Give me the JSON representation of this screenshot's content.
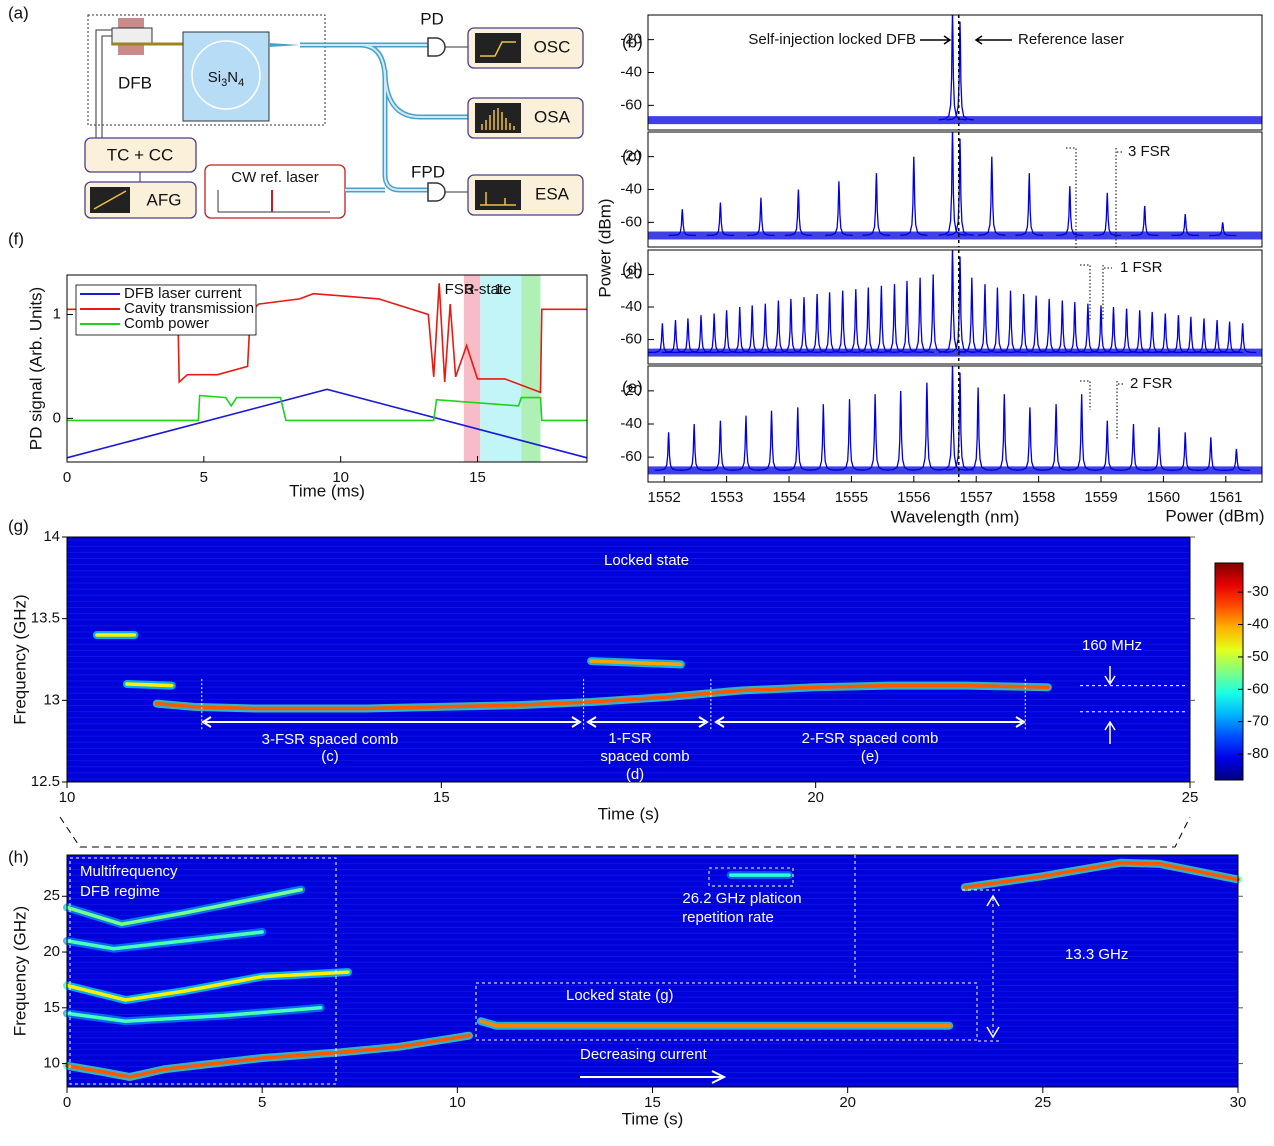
{
  "diagram": {
    "panel_label": "(a)",
    "dfb": "DFB",
    "chip": [
      "Si",
      "3",
      "N",
      "4"
    ],
    "controller": "TC + CC",
    "afg": "AFG",
    "ref_laser": "CW ref. laser",
    "pd": "PD",
    "osc": "OSC",
    "osa": "OSA",
    "fpd": "FPD",
    "esa": "ESA"
  },
  "chart_data": [
    {
      "type": "line",
      "panel_label": "(f)",
      "xlabel": "Time (ms)",
      "ylabel": "PD signal (Arb. Units)",
      "xlim": [
        0,
        19
      ],
      "ylim": [
        -0.42,
        1.38
      ],
      "xticks": [
        0,
        5,
        10,
        15
      ],
      "yticks": [
        0,
        1
      ],
      "legend": "upper-left",
      "regions": [
        {
          "x": [
            14.5,
            15.1
          ],
          "color": "#f7bcc8",
          "label": "3-"
        },
        {
          "x": [
            15.1,
            16.6
          ],
          "color": "#c2f5f8",
          "label": "1-"
        },
        {
          "x": [
            16.6,
            17.3
          ],
          "color": "#aef0b6"
        }
      ],
      "regions_caption": "FSR state",
      "series": [
        {
          "name": "DFB laser current",
          "color": "#1a1ad8",
          "x": [
            0,
            9.5,
            19
          ],
          "values": [
            -0.38,
            0.28,
            -0.38
          ]
        },
        {
          "name": "Cavity transmission",
          "color": "#e81a12",
          "x": [
            0,
            4.05,
            4.1,
            4.4,
            5.5,
            6.6,
            6.7,
            7.0,
            8.5,
            9.0,
            10.0,
            11.4,
            12.0,
            13.2,
            13.4,
            13.6,
            13.8,
            14.0,
            14.2,
            14.6,
            15.0,
            16.0,
            17.3,
            17.35,
            19
          ],
          "values": [
            1.05,
            1.05,
            0.35,
            0.42,
            0.42,
            0.5,
            1.02,
            1.1,
            1.15,
            1.2,
            1.18,
            1.15,
            1.1,
            1.0,
            0.4,
            1.3,
            0.35,
            1.1,
            0.4,
            0.7,
            0.38,
            0.38,
            0.25,
            1.05,
            1.05
          ]
        },
        {
          "name": "Comb power",
          "color": "#1ed21e",
          "x": [
            0,
            4.8,
            4.85,
            5.8,
            6.0,
            6.2,
            7.8,
            8.0,
            13.4,
            13.5,
            16.5,
            16.6,
            17.3,
            17.35,
            19
          ],
          "values": [
            -0.02,
            -0.02,
            0.22,
            0.2,
            0.12,
            0.2,
            0.2,
            -0.02,
            -0.02,
            0.18,
            0.12,
            0.2,
            0.2,
            -0.02,
            -0.02
          ]
        }
      ]
    },
    {
      "type": "spectrum",
      "panel_label": "(b)",
      "xlim": [
        1551.74,
        1561.58
      ],
      "ylim": [
        -75,
        -5
      ],
      "yticks": [
        -20,
        -40,
        -60
      ],
      "color": "#0000e0",
      "noise_floor": -69,
      "reference_line": 1556.72,
      "x": [
        1556.62,
        1556.74
      ],
      "values": [
        -3,
        -9
      ],
      "annotations": [
        "Self-injection locked DFB",
        "Reference laser"
      ]
    },
    {
      "type": "spectrum",
      "panel_label": "(c)",
      "ylabel": "Power (dBm)",
      "xlim": [
        1551.74,
        1561.58
      ],
      "ylim": [
        -75,
        -5
      ],
      "yticks": [
        -20,
        -40,
        -60
      ],
      "color": "#0000e0",
      "noise_floor": -68,
      "reference_line": 1556.72,
      "x": [
        1552.29,
        1552.9,
        1553.55,
        1554.15,
        1554.8,
        1555.4,
        1556.0,
        1556.62,
        1556.74,
        1557.25,
        1557.85,
        1558.5,
        1559.1,
        1559.7,
        1560.35,
        1560.95
      ],
      "values": [
        -52,
        -48,
        -45,
        -40,
        -35,
        -30,
        -20,
        -3,
        -9,
        -20,
        -30,
        -38,
        -42,
        -50,
        -55,
        -60
      ],
      "annotations": [
        "3 FSR"
      ]
    },
    {
      "type": "spectrum",
      "panel_label": "(d)",
      "xlim": [
        1551.74,
        1561.58
      ],
      "ylim": [
        -75,
        -5
      ],
      "yticks": [
        -20,
        -40,
        -60
      ],
      "color": "#0000e0",
      "noise_floor": -68,
      "reference_line": 1556.72,
      "x": [
        1551.97,
        1552.18,
        1552.38,
        1552.59,
        1552.8,
        1553.0,
        1553.21,
        1553.41,
        1553.62,
        1553.83,
        1554.03,
        1554.24,
        1554.45,
        1554.65,
        1554.86,
        1555.07,
        1555.27,
        1555.48,
        1555.69,
        1555.89,
        1556.1,
        1556.31,
        1556.62,
        1556.74,
        1556.93,
        1557.14,
        1557.34,
        1557.55,
        1557.76,
        1557.96,
        1558.17,
        1558.38,
        1558.58,
        1558.79,
        1559.0,
        1559.2,
        1559.41,
        1559.62,
        1559.82,
        1560.03,
        1560.24,
        1560.44,
        1560.65,
        1560.86,
        1561.06,
        1561.27
      ],
      "values": [
        -50,
        -48,
        -47,
        -45,
        -44,
        -42,
        -40,
        -39,
        -38,
        -36,
        -35,
        -34,
        -32,
        -31,
        -30,
        -29,
        -28,
        -27,
        -26,
        -24,
        -22,
        -20,
        -3,
        -9,
        -22,
        -26,
        -28,
        -30,
        -32,
        -33,
        -35,
        -36,
        -37,
        -38,
        -39,
        -40,
        -41,
        -42,
        -43,
        -44,
        -45,
        -46,
        -47,
        -48,
        -49,
        -50
      ],
      "annotations": [
        "1 FSR"
      ]
    },
    {
      "type": "spectrum",
      "panel_label": "(e)",
      "xlabel": "Wavelength (nm)",
      "xlim": [
        1551.74,
        1561.58
      ],
      "ylim": [
        -75,
        -5
      ],
      "yticks": [
        -20,
        -40,
        -60
      ],
      "xticks": [
        1552,
        1553,
        1554,
        1555,
        1556,
        1557,
        1558,
        1559,
        1560,
        1561
      ],
      "color": "#0000e0",
      "noise_floor": -68,
      "reference_line": 1556.72,
      "x": [
        1552.07,
        1552.48,
        1552.9,
        1553.31,
        1553.72,
        1554.14,
        1554.55,
        1554.97,
        1555.38,
        1555.79,
        1556.21,
        1556.62,
        1556.74,
        1557.03,
        1557.45,
        1557.86,
        1558.28,
        1558.69,
        1559.1,
        1559.52,
        1559.93,
        1560.35,
        1560.76,
        1561.17
      ],
      "values": [
        -45,
        -40,
        -38,
        -35,
        -32,
        -30,
        -28,
        -25,
        -22,
        -20,
        -15,
        -3,
        -9,
        -18,
        -22,
        -30,
        -28,
        -22,
        -38,
        -40,
        -42,
        -45,
        -48,
        -55
      ],
      "annotations": [
        "2 FSR"
      ]
    },
    {
      "type": "heatmap",
      "panel_label": "(g)",
      "xlabel": "Time (s)",
      "ylabel": "Frequency (GHz)",
      "xlim": [
        10,
        25
      ],
      "ylim": [
        12.5,
        14
      ],
      "xticks": [
        10,
        15,
        20,
        25
      ],
      "yticks": [
        14,
        13.5,
        13,
        12.5
      ],
      "background_level": -82,
      "clim": [
        -88,
        -21
      ],
      "colorbar_ticks": [
        -30,
        -40,
        -50,
        -60,
        -70,
        -80
      ],
      "colorbar_label": "Power (dBm)",
      "boundaries": [
        11.8,
        16.9,
        18.6,
        22.8
      ],
      "spacing_lines": [
        13.09,
        12.93
      ],
      "traces": [
        {
          "level": -35,
          "x": [
            11.2,
            11.7,
            12.5,
            14,
            16,
            17,
            18,
            19,
            20,
            21,
            22,
            23.1
          ],
          "values": [
            12.98,
            12.96,
            12.95,
            12.95,
            12.97,
            12.99,
            13.02,
            13.06,
            13.08,
            13.09,
            13.09,
            13.08
          ]
        },
        {
          "level": -45,
          "x": [
            10.4,
            10.9
          ],
          "values": [
            13.4,
            13.4
          ]
        },
        {
          "level": -45,
          "x": [
            10.8,
            11.4
          ],
          "values": [
            13.1,
            13.09
          ]
        },
        {
          "level": -40,
          "x": [
            17.0,
            18.2
          ],
          "values": [
            13.24,
            13.22
          ]
        }
      ],
      "annotations": [
        "Locked state",
        "160 MHz",
        "3-FSR spaced comb",
        "(c)",
        "1-FSR",
        "spaced comb",
        "(d)",
        "2-FSR spaced comb",
        "(e)"
      ]
    },
    {
      "type": "heatmap",
      "panel_label": "(h)",
      "xlabel": "Time (s)",
      "ylabel": "Frequency (GHz)",
      "xlim": [
        0,
        30
      ],
      "ylim": [
        7.9,
        28.7
      ],
      "xticks": [
        0,
        5,
        10,
        15,
        20,
        25,
        30
      ],
      "yticks": [
        10,
        15,
        20,
        25
      ],
      "background_level": -82,
      "clim": [
        -88,
        -21
      ],
      "traces": [
        {
          "level": -35,
          "x": [
            0,
            1,
            1.6,
            2.5,
            5,
            7,
            8.5,
            10.3
          ],
          "values": [
            9.8,
            9.2,
            8.8,
            9.5,
            10.5,
            11,
            11.5,
            12.5
          ]
        },
        {
          "level": -38,
          "x": [
            10.6,
            11,
            15,
            20,
            22.6
          ],
          "values": [
            13.8,
            13.4,
            13.4,
            13.4,
            13.4
          ]
        },
        {
          "level": -35,
          "x": [
            23,
            25,
            27,
            28,
            30
          ],
          "values": [
            25.8,
            26.8,
            28,
            27.9,
            26.5
          ]
        },
        {
          "level": -45,
          "x": [
            0,
            1.5,
            3,
            5,
            7.2
          ],
          "values": [
            17,
            15.7,
            16.5,
            17.8,
            18.2
          ]
        },
        {
          "level": -55,
          "x": [
            0,
            1.4,
            3,
            6
          ],
          "values": [
            24,
            22.5,
            23.5,
            25.6
          ]
        },
        {
          "level": -58,
          "x": [
            0,
            1.2,
            3,
            5
          ],
          "values": [
            21,
            20.3,
            21,
            21.8
          ]
        },
        {
          "level": -58,
          "x": [
            0,
            1.5,
            4,
            6.5
          ],
          "values": [
            14.5,
            13.8,
            14.3,
            15
          ]
        },
        {
          "level": -60,
          "x": [
            17,
            18.5
          ],
          "values": [
            26.9,
            26.9
          ]
        }
      ],
      "annotations": [
        "Multifrequency",
        "DFB regime",
        "26.2 GHz platicon",
        "repetition rate",
        "13.3 GHz",
        "Locked state (g)",
        "Decreasing current"
      ]
    }
  ]
}
